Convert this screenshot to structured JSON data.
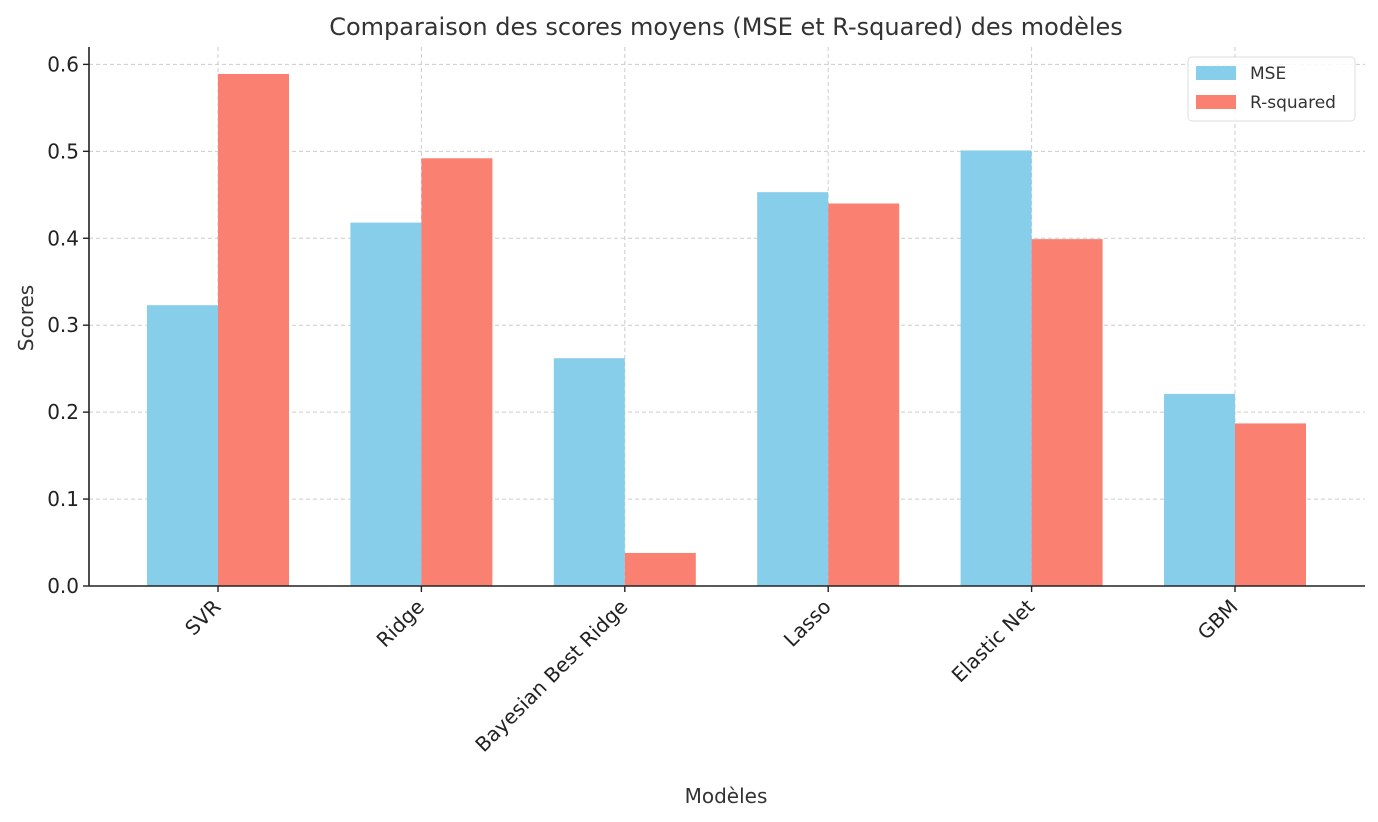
{
  "chart_data": {
    "type": "bar",
    "title": "Comparaison des scores moyens (MSE et R-squared) des modèles",
    "xlabel": "Modèles",
    "ylabel": "Scores",
    "categories": [
      "SVR",
      "Ridge",
      "Bayesian Best Ridge",
      "Lasso",
      "Elastic Net",
      "GBM"
    ],
    "series": [
      {
        "name": "MSE",
        "color": "#87CEEB",
        "values": [
          0.323,
          0.418,
          0.262,
          0.453,
          0.501,
          0.221
        ]
      },
      {
        "name": "R-squared",
        "color": "#FA8072",
        "values": [
          0.589,
          0.492,
          0.038,
          0.44,
          0.399,
          0.187
        ]
      }
    ],
    "ylim": [
      0,
      0.62
    ],
    "yticks": [
      0.0,
      0.1,
      0.2,
      0.3,
      0.4,
      0.5,
      0.6
    ],
    "ytick_labels": [
      "0.0",
      "0.1",
      "0.2",
      "0.3",
      "0.4",
      "0.5",
      "0.6"
    ],
    "grid": true,
    "legend_position": "top-right"
  }
}
